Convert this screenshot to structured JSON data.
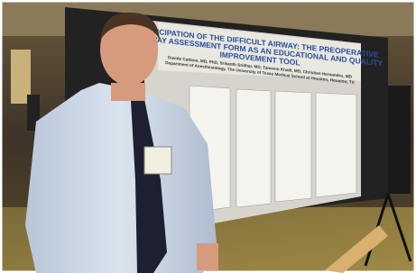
{
  "poster": {
    "title_lines": [
      "ANTICIPATION OF THE DIFFICULT AIRWAY: THE PREOPERATIVE",
      "AIRWAY ASSESSMENT FORM AS AN EDUCATIONAL AND QUALITY",
      "IMPROVEMENT TOOL"
    ],
    "authors": "Davide Cattano, MD, PhD, Srikanth Sridhar, MD, Tameem Khalil, MD, Christian Hernandez, MD",
    "affiliation": "Department of Anesthesiology, The University of Texas Medical School at Houston, Houston, TX"
  }
}
